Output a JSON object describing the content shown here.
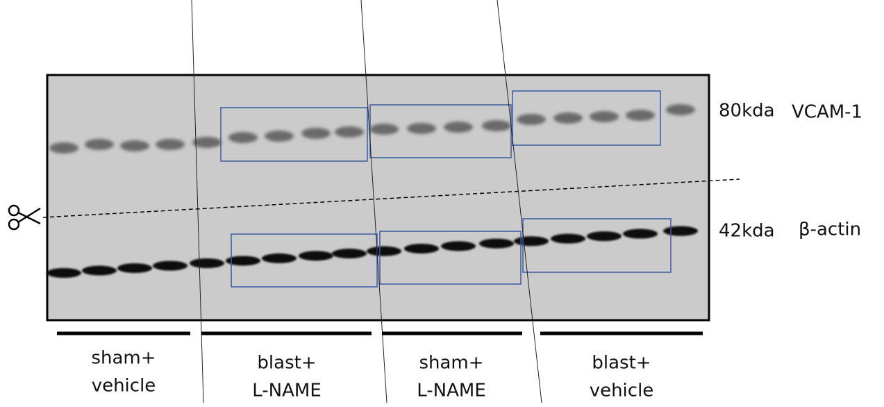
{
  "markers": {
    "upper_size": "80kda",
    "upper_name": "VCAM-1",
    "lower_size": "42kda",
    "lower_name": "β-actin"
  },
  "groups": [
    {
      "lines": [
        "sham+",
        "vehicle"
      ]
    },
    {
      "lines": [
        "blast+",
        "L-NAME"
      ]
    },
    {
      "lines": [
        "sham+",
        "L-NAME"
      ]
    },
    {
      "lines": [
        "blast+",
        "vehicle"
      ]
    }
  ]
}
